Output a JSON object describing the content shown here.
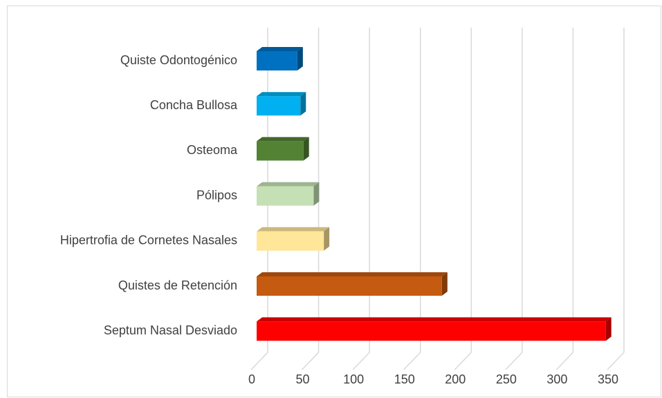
{
  "chart_data": {
    "type": "bar3d",
    "orientation": "horizontal",
    "categories": [
      "Quiste Odontogénico",
      "Concha Bullosa",
      "Osteoma",
      "Pólipos",
      "Hipertrofia de Cornetes Nasales",
      "Quistes de Retención",
      "Septum Nasal Desviado"
    ],
    "values": [
      40,
      43,
      46,
      56,
      66,
      182,
      343
    ],
    "colors": [
      "#0070c0",
      "#00b0f0",
      "#548235",
      "#c5e0b4",
      "#ffe699",
      "#c55a11",
      "#ff0000"
    ],
    "xlim": [
      0,
      350
    ],
    "xticks": [
      0,
      50,
      100,
      150,
      200,
      250,
      300,
      350
    ],
    "grid": true
  }
}
